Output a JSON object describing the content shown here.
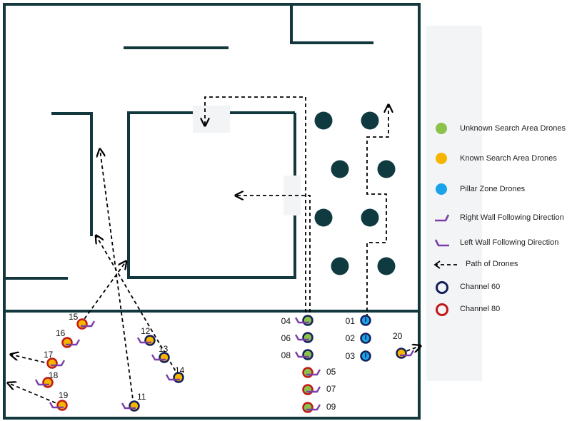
{
  "colors": {
    "wall": "#12383e",
    "pillar": "#0f3a40",
    "panel": "#f2f4f5",
    "unknown_area": "#8ac24a",
    "known_area": "#f7b500",
    "pillar_zone": "#1aa3e8",
    "channel_60": "#14205a",
    "channel_80": "#c01818",
    "arrow": "#7a3fa8",
    "path": "#000000"
  },
  "legend": {
    "unknown": "Unknown Search Area Drones",
    "known": "Known Search Area Drones",
    "pillar": "Pillar Zone Drones",
    "right_wall": "Right Wall Following Direction",
    "left_wall": "Left Wall Following Direction",
    "path": "Path of Drones",
    "channel_60": "Channel 60",
    "channel_80": "Channel 80"
  },
  "drones": [
    {
      "id": "04",
      "zone": "unknown",
      "channel": "60",
      "dir": "left"
    },
    {
      "id": "06",
      "zone": "unknown",
      "channel": "60",
      "dir": "left"
    },
    {
      "id": "08",
      "zone": "unknown",
      "channel": "60",
      "dir": "left"
    },
    {
      "id": "05",
      "zone": "unknown",
      "channel": "80",
      "dir": "right"
    },
    {
      "id": "07",
      "zone": "unknown",
      "channel": "80",
      "dir": "right"
    },
    {
      "id": "09",
      "zone": "unknown",
      "channel": "80",
      "dir": "right"
    },
    {
      "id": "01",
      "zone": "pillar",
      "channel": "60",
      "dir": "none"
    },
    {
      "id": "02",
      "zone": "pillar",
      "channel": "60",
      "dir": "none"
    },
    {
      "id": "03",
      "zone": "pillar",
      "channel": "60",
      "dir": "none"
    },
    {
      "id": "20",
      "zone": "known",
      "channel": "60",
      "dir": "right"
    },
    {
      "id": "15",
      "zone": "known",
      "channel": "80",
      "dir": "right"
    },
    {
      "id": "16",
      "zone": "known",
      "channel": "80",
      "dir": "right"
    },
    {
      "id": "17",
      "zone": "known",
      "channel": "80",
      "dir": "right"
    },
    {
      "id": "18",
      "zone": "known",
      "channel": "80",
      "dir": "left"
    },
    {
      "id": "19",
      "zone": "known",
      "channel": "80",
      "dir": "left"
    },
    {
      "id": "12",
      "zone": "known",
      "channel": "60",
      "dir": "left"
    },
    {
      "id": "13",
      "zone": "known",
      "channel": "60",
      "dir": "left"
    },
    {
      "id": "14",
      "zone": "known",
      "channel": "60",
      "dir": "left"
    },
    {
      "id": "11",
      "zone": "known",
      "channel": "60",
      "dir": "left"
    }
  ]
}
